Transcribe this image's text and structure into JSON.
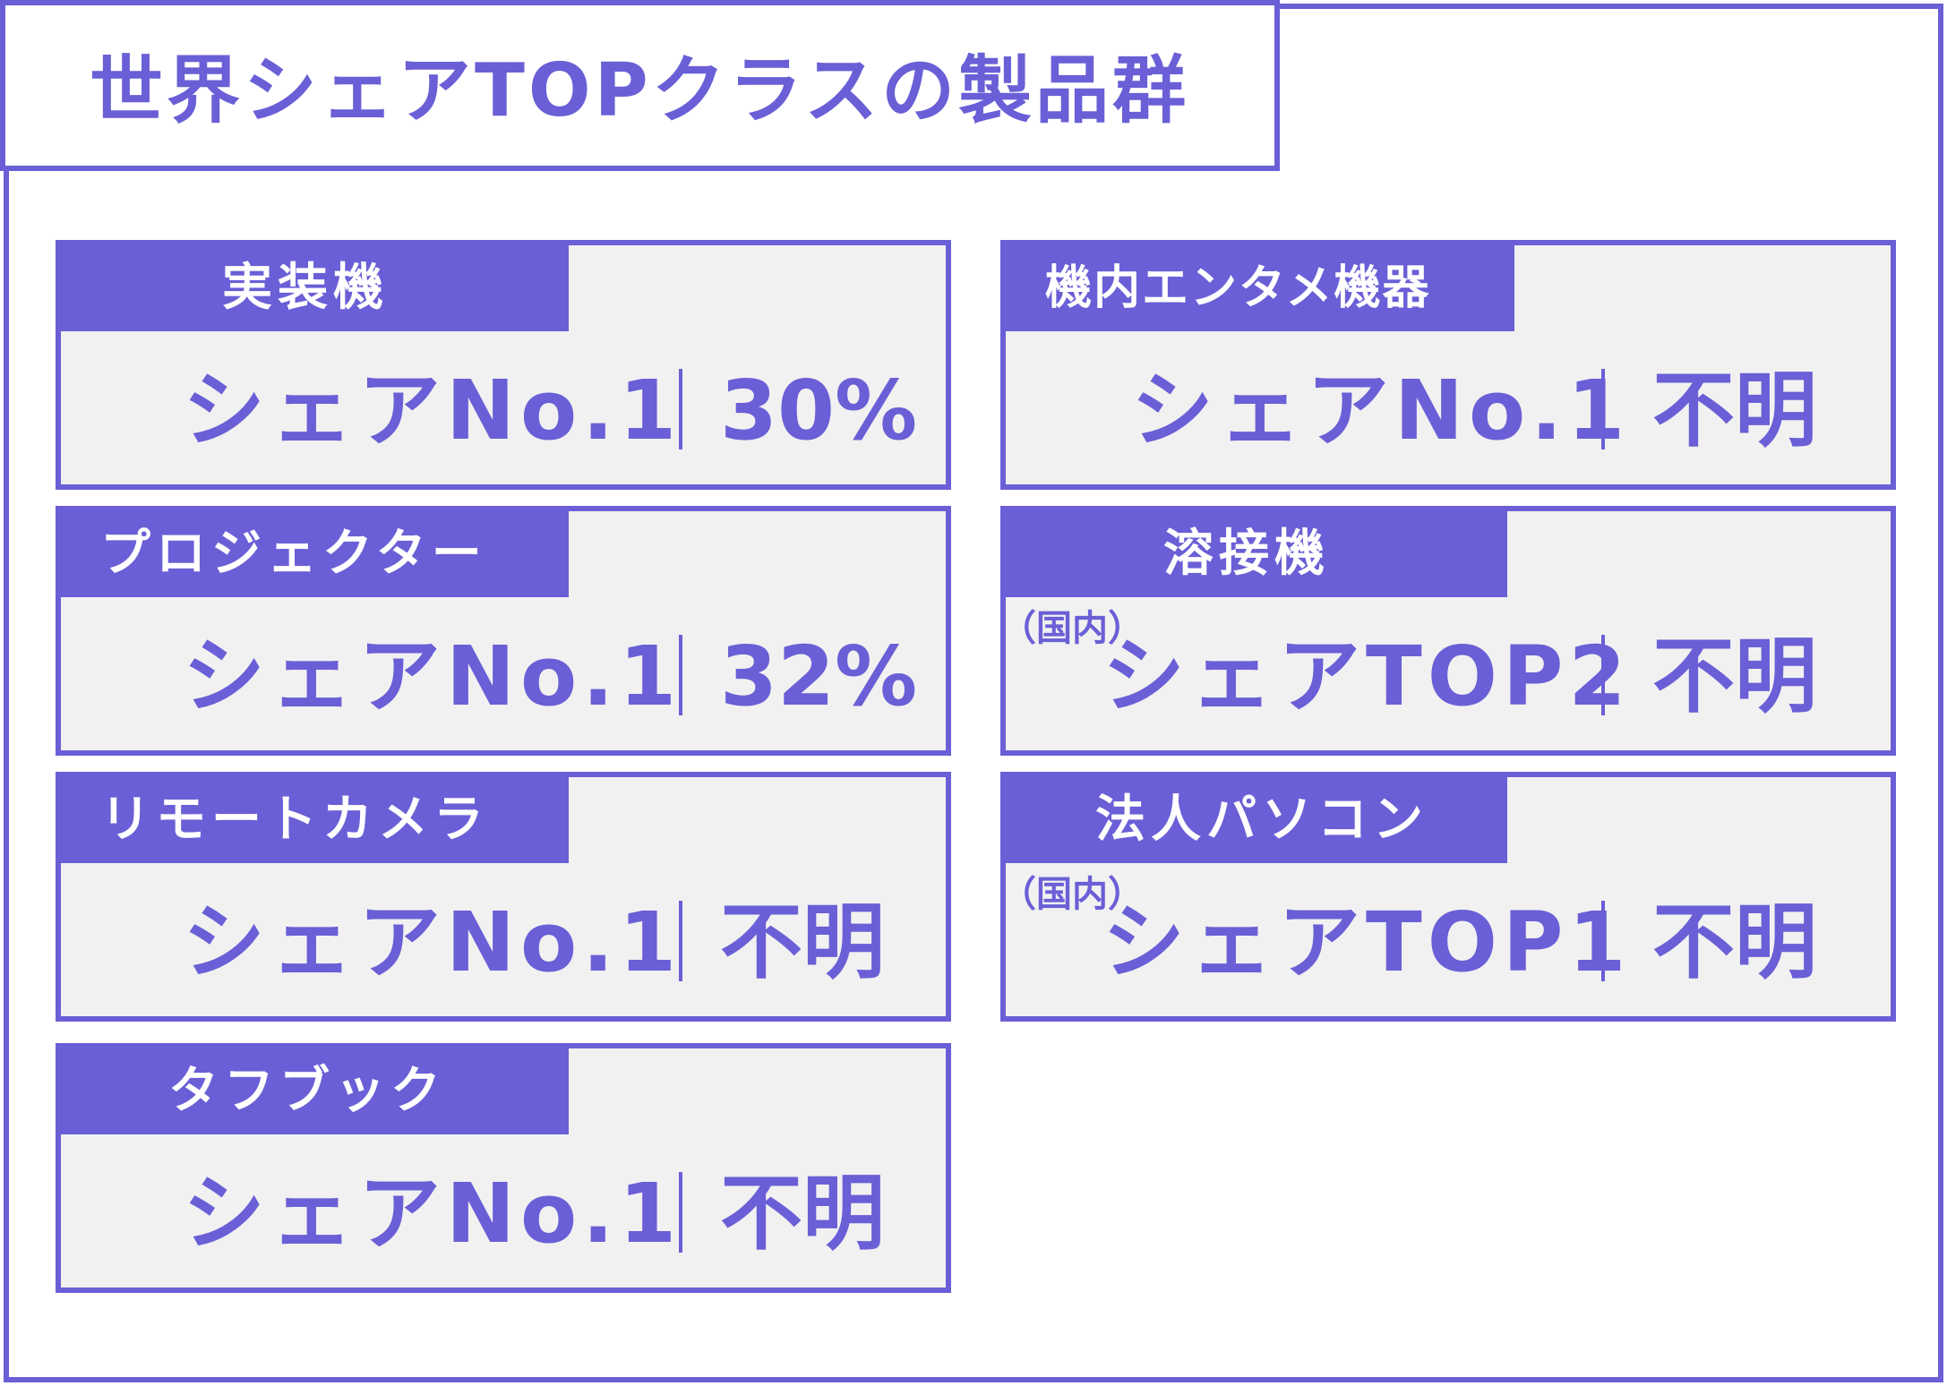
{
  "title": "世界シェアTOPクラスの製品群",
  "colors": {
    "accent": "#6a5fd6",
    "card_bg": "#f1f1f1",
    "label_text": "#ffffff"
  },
  "products": [
    {
      "name": "実装機",
      "share": "シェアNo.1",
      "value": "30%"
    },
    {
      "name": "プロジェクター",
      "share": "シェアNo.1",
      "value": "32%"
    },
    {
      "name": "リモートカメラ",
      "share": "シェアNo.1",
      "value": "不明"
    },
    {
      "name": "タフブック",
      "share": "シェアNo.1",
      "value": "不明"
    },
    {
      "name": "機内エンタメ機器",
      "share": "シェアNo.1",
      "value": "不明"
    },
    {
      "name": "溶接機",
      "note": "（国内）",
      "share": "シェアTOP2",
      "value": "不明"
    },
    {
      "name": "法人パソコン",
      "note": "（国内）",
      "share": "シェアTOP1",
      "value": "不明"
    }
  ]
}
